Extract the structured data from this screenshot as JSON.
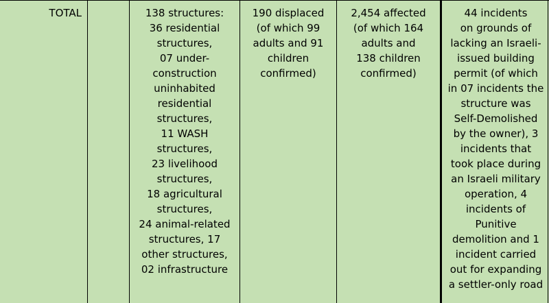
{
  "row": {
    "label": "TOTAL",
    "structures": [
      "138 structures:",
      "36 residential",
      "structures,",
      "07 under-",
      "construction",
      "uninhabited",
      "residential",
      "structures,",
      "11 WASH",
      "structures,",
      "23 livelihood",
      "structures,",
      "18 agricultural",
      "structures,",
      "24 animal-related",
      "structures, 17",
      "other structures,",
      "02 infrastructure"
    ],
    "displaced": [
      "190 displaced",
      "(of which 99",
      "adults and 91",
      "children",
      "confirmed)"
    ],
    "affected": [
      "2,454 affected",
      "(of which 164",
      "adults and",
      "138 children",
      "confirmed)"
    ],
    "incidents": [
      "44 incidents",
      "on grounds of",
      "lacking an Israeli-",
      "issued building",
      "permit (of which",
      "in 07 incidents the",
      "structure was",
      "Self-Demolished",
      "by the owner), 3",
      "incidents that",
      "took place during",
      "an Israeli military",
      "operation, 4",
      "incidents of",
      "Punitive",
      "demolition and 1",
      "incident carried",
      "out for expanding",
      "a settler-only road"
    ]
  }
}
